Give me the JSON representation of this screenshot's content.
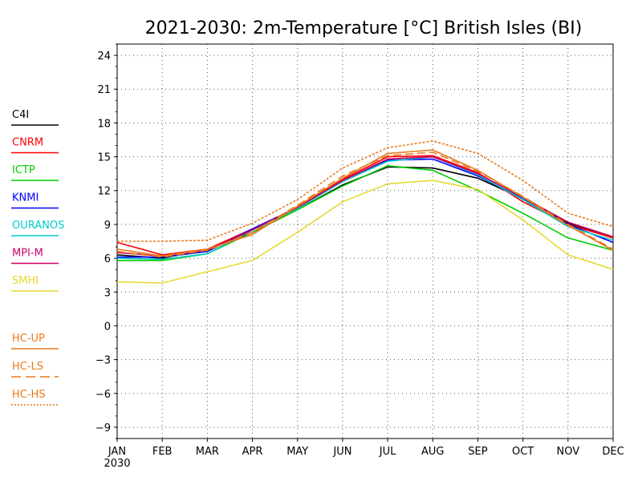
{
  "chart_data": {
    "type": "line",
    "title": "2021-2030: 2m-Temperature [°C] British Isles (BI)",
    "x_label_year": "2030",
    "categories": [
      "JAN",
      "FEB",
      "MAR",
      "APR",
      "MAY",
      "JUN",
      "JUL",
      "AUG",
      "SEP",
      "OCT",
      "NOV",
      "DEC"
    ],
    "ylim": [
      -10,
      25
    ],
    "yticks": [
      -9,
      -6,
      -3,
      0,
      3,
      6,
      9,
      12,
      15,
      18,
      21,
      24
    ],
    "grid": true,
    "legend_position": "left",
    "series": [
      {
        "name": "C4I",
        "color": "#000000",
        "dash": "solid",
        "values": [
          6.3,
          6.0,
          6.8,
          8.3,
          10.3,
          12.5,
          14.1,
          14.0,
          13.1,
          11.3,
          9.1,
          7.8
        ]
      },
      {
        "name": "CNRM",
        "color": "#ff0000",
        "dash": "solid",
        "values": [
          7.4,
          6.3,
          6.8,
          8.6,
          10.5,
          13.0,
          15.0,
          15.1,
          13.6,
          11.0,
          9.0,
          7.8
        ]
      },
      {
        "name": "ICTP",
        "color": "#00cc00",
        "dash": "solid",
        "values": [
          5.8,
          5.8,
          6.4,
          8.3,
          10.3,
          12.4,
          14.2,
          13.8,
          12.0,
          10.0,
          7.8,
          6.7
        ]
      },
      {
        "name": "KNMI",
        "color": "#0000ff",
        "dash": "solid",
        "values": [
          6.1,
          6.1,
          6.6,
          8.6,
          10.5,
          12.8,
          14.7,
          14.8,
          13.3,
          11.3,
          9.0,
          7.4
        ]
      },
      {
        "name": "OURANOS",
        "color": "#00cccc",
        "dash": "solid",
        "values": [
          6.0,
          5.9,
          6.4,
          8.5,
          10.4,
          12.8,
          14.6,
          15.0,
          13.4,
          11.2,
          8.8,
          7.6
        ]
      },
      {
        "name": "MPI-M",
        "color": "#cc0066",
        "dash": "solid",
        "values": [
          6.5,
          6.2,
          6.7,
          8.5,
          10.5,
          12.9,
          14.8,
          15.0,
          13.5,
          11.4,
          9.2,
          7.9
        ]
      },
      {
        "name": "SMHI",
        "color": "#e6d933",
        "dash": "solid",
        "values": [
          3.9,
          3.8,
          4.8,
          5.8,
          8.3,
          11.0,
          12.6,
          12.9,
          12.1,
          9.4,
          6.3,
          5.0
        ]
      },
      {
        "name": "HC-UP",
        "color": "#e87a1c",
        "dash": "solid",
        "values": [
          6.8,
          6.2,
          6.8,
          8.1,
          10.6,
          13.1,
          15.3,
          15.6,
          13.8,
          11.4,
          8.9,
          6.7
        ]
      },
      {
        "name": "HC-LS",
        "color": "#e87a1c",
        "dash": "dashed",
        "values": [
          6.6,
          6.1,
          6.7,
          8.3,
          10.7,
          13.3,
          15.1,
          15.4,
          13.7,
          11.5,
          9.0,
          6.8
        ]
      },
      {
        "name": "HC-HS",
        "color": "#e87a1c",
        "dash": "dotted",
        "values": [
          7.5,
          7.5,
          7.6,
          9.1,
          11.2,
          14.0,
          15.8,
          16.4,
          15.3,
          12.9,
          10.0,
          8.8
        ]
      }
    ]
  }
}
